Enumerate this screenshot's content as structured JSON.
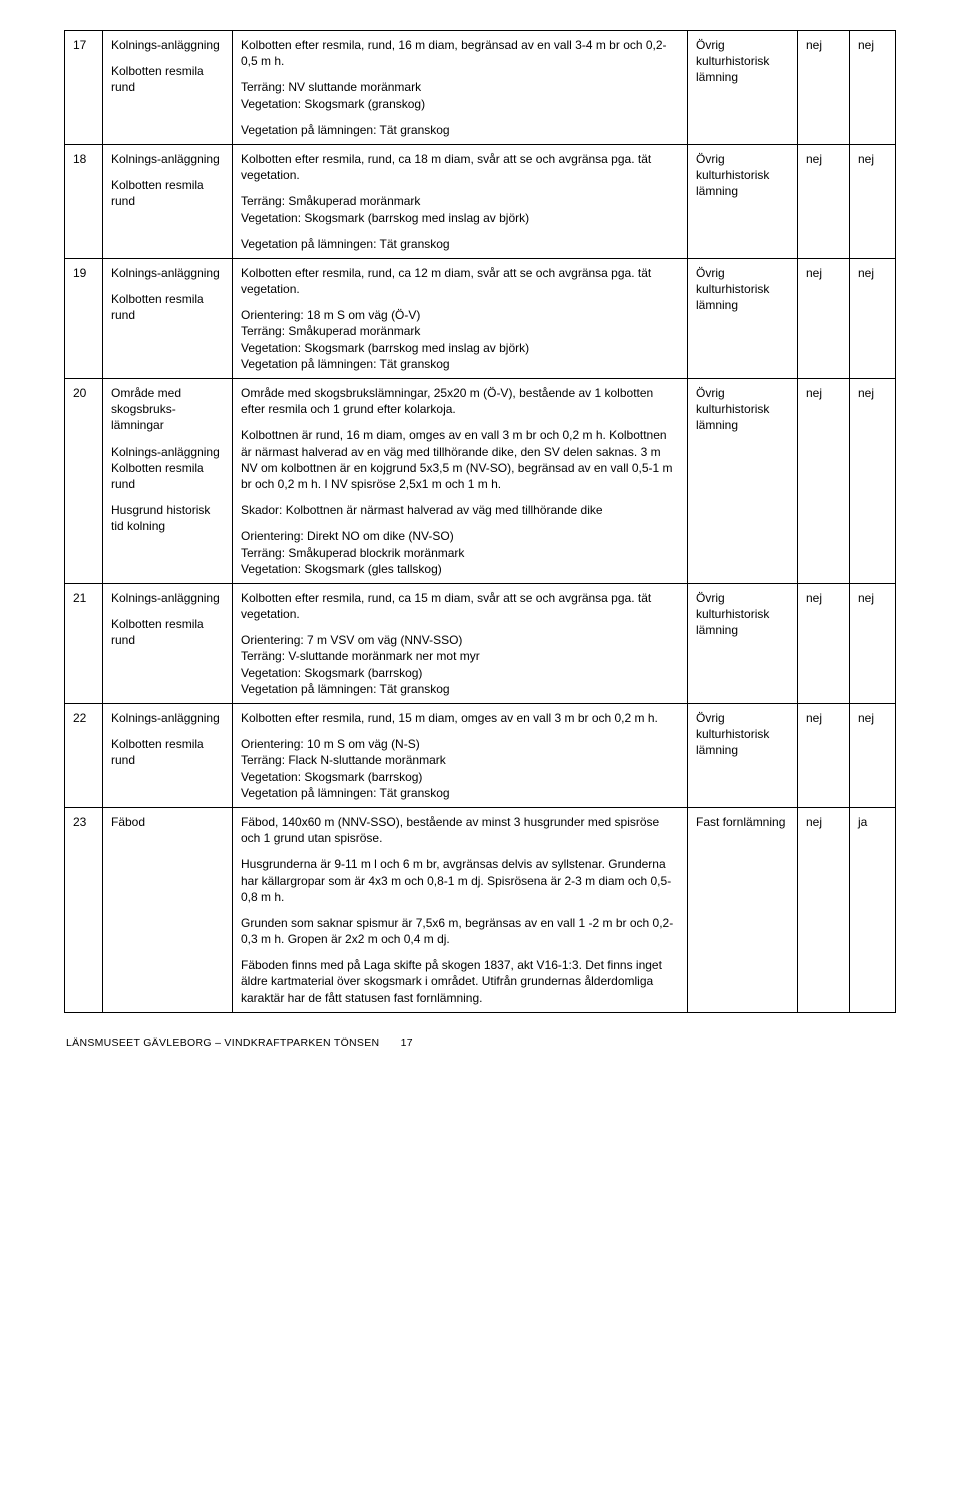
{
  "rows": [
    {
      "num": "17",
      "type_paras": [
        "Kolnings-anläggning",
        "Kolbotten resmila rund"
      ],
      "desc_paras": [
        "Kolbotten efter resmila, rund, 16 m diam, begränsad av en vall 3-4 m br och 0,2-0,5 m h.",
        "Terräng: NV sluttande moränmark\nVegetation: Skogsmark (granskog)",
        "Vegetation på lämningen: Tät granskog"
      ],
      "status": "Övrig kulturhistorisk lämning",
      "c4": "nej",
      "c5": "nej"
    },
    {
      "num": "18",
      "type_paras": [
        "Kolnings-anläggning",
        "Kolbotten resmila rund"
      ],
      "desc_paras": [
        "Kolbotten efter resmila, rund, ca 18 m diam, svår att se och avgränsa pga. tät vegetation.",
        "Terräng: Småkuperad moränmark\nVegetation: Skogsmark (barrskog med inslag av björk)",
        "Vegetation på lämningen: Tät granskog"
      ],
      "status": "Övrig kulturhistorisk lämning",
      "c4": "nej",
      "c5": "nej"
    },
    {
      "num": "19",
      "type_paras": [
        "Kolnings-anläggning",
        "Kolbotten resmila rund"
      ],
      "desc_paras": [
        "Kolbotten efter resmila, rund, ca 12 m diam, svår att se och avgränsa pga. tät vegetation.",
        "Orientering: 18 m S om väg (Ö-V)\nTerräng: Småkuperad moränmark\nVegetation: Skogsmark (barrskog med inslag av björk)\nVegetation på lämningen: Tät granskog"
      ],
      "status": "Övrig kulturhistorisk lämning",
      "c4": "nej",
      "c5": "nej"
    },
    {
      "num": "20",
      "type_paras": [
        "Område med skogsbruks-lämningar",
        "Kolnings-anläggning\nKolbotten resmila rund",
        "Husgrund historisk tid kolning"
      ],
      "desc_paras": [
        "Område med skogsbrukslämningar, 25x20 m (Ö-V), bestående av 1 kolbotten efter resmila och 1 grund efter kolarkoja.",
        "Kolbottnen är rund, 16 m diam, omges av en vall 3 m br och 0,2 m h. Kolbottnen är närmast halverad av en väg med tillhörande dike, den SV delen saknas. 3 m NV om kolbottnen är en kojgrund 5x3,5 m (NV-SO), begränsad av en vall 0,5-1 m br och 0,2 m h. I NV spisröse 2,5x1 m och 1 m h.",
        "Skador: Kolbottnen är närmast halverad av väg med tillhörande dike",
        "Orientering: Direkt NO om dike (NV-SO)\nTerräng: Småkuperad blockrik moränmark\nVegetation: Skogsmark (gles tallskog)"
      ],
      "status": "Övrig kulturhistorisk lämning",
      "c4": "nej",
      "c5": "nej"
    },
    {
      "num": "21",
      "type_paras": [
        "Kolnings-anläggning",
        "Kolbotten resmila rund"
      ],
      "desc_paras": [
        "Kolbotten efter resmila, rund, ca 15 m diam, svår att se och avgränsa pga. tät vegetation.",
        "Orientering: 7 m VSV om väg (NNV-SSO)\nTerräng: V-sluttande moränmark ner mot myr\nVegetation: Skogsmark (barrskog)\nVegetation på lämningen: Tät granskog"
      ],
      "status": "Övrig kulturhistorisk lämning",
      "c4": "nej",
      "c5": "nej"
    },
    {
      "num": "22",
      "type_paras": [
        "Kolnings-anläggning",
        "Kolbotten resmila rund"
      ],
      "desc_paras": [
        "Kolbotten efter resmila, rund, 15 m diam, omges av en vall 3 m br och 0,2 m h.",
        "Orientering: 10 m S om väg (N-S)\nTerräng: Flack N-sluttande moränmark\nVegetation: Skogsmark (barrskog)\nVegetation på lämningen: Tät granskog"
      ],
      "status": "Övrig kulturhistorisk lämning",
      "c4": "nej",
      "c5": "nej"
    },
    {
      "num": "23",
      "type_paras": [
        "Fäbod"
      ],
      "desc_paras": [
        "Fäbod, 140x60 m (NNV-SSO), bestående av minst 3 husgrunder med spisröse och 1 grund utan spisröse.",
        "Husgrunderna är 9-11 m l och 6 m br, avgränsas delvis av syllstenar. Grunderna har källargropar som är 4x3 m och 0,8-1 m dj. Spisrösena är 2-3 m diam och 0,5-0,8 m h.",
        "Grunden som saknar spismur är 7,5x6 m, begränsas av en vall 1 -2 m br och 0,2-0,3 m h. Gropen är 2x2 m och 0,4 m dj.",
        "Fäboden finns med på Laga skifte på skogen 1837, akt V16-1:3. Det finns inget äldre kartmaterial över skogsmark i området. Utifrån grundernas ålderdomliga karaktär har de fått statusen fast fornlämning."
      ],
      "status": "Fast fornlämning",
      "c4": "nej",
      "c5": "ja"
    }
  ],
  "footer": {
    "text": "LÄNSMUSEET GÄVLEBORG – VINDKRAFTPARKEN TÖNSEN",
    "page": "17"
  }
}
